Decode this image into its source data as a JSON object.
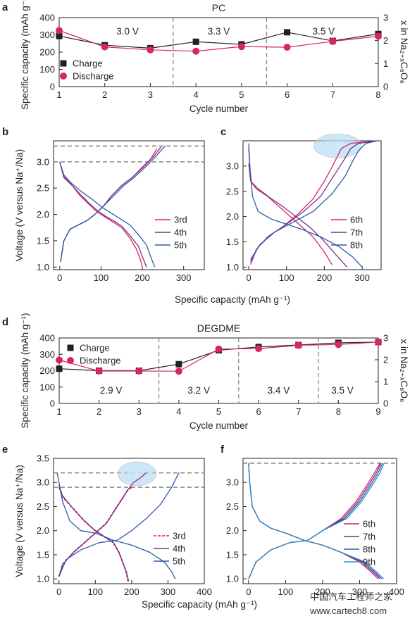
{
  "colors": {
    "charge": "#231f20",
    "discharge": "#d6246e",
    "line_3rd": "#d6246e",
    "line_4th": "#7b2f86",
    "line_5th": "#2b5ba8",
    "line_6th": "#d6246e",
    "line_7th": "#7b2f86",
    "line_8th": "#2b5ba8",
    "line_9th": "#2f8fc9",
    "dashed_ref": "#888888",
    "highlight": "#a9d3f0"
  },
  "watermark": {
    "line1": "中国汽车工程师之家",
    "line2": "www.cartech8.com"
  },
  "chart_data": [
    {
      "panel": "a",
      "type": "line",
      "title": "PC",
      "xlabel": "Cycle number",
      "ylabel": "Specific capacity (mAh g⁻¹)",
      "y2label": "x in Na₂₊ₓC₆O₆",
      "xlim": [
        1,
        8
      ],
      "ylim": [
        0,
        400
      ],
      "y2lim": [
        0,
        3
      ],
      "xticks": [
        "1",
        "2",
        "3",
        "4",
        "5",
        "6",
        "7",
        "8"
      ],
      "yticks": [
        "0",
        "100",
        "200",
        "300",
        "400"
      ],
      "y2ticks": [
        "0",
        "1",
        "2",
        "3"
      ],
      "region_labels": [
        "3.0 V",
        "3.3 V",
        "3.5 V"
      ],
      "region_label_x": [
        2.5,
        4.5,
        6.8
      ],
      "dividers": [
        3.5,
        5.55
      ],
      "legend": [
        "Charge",
        "Discharge"
      ],
      "series": [
        {
          "name": "Charge",
          "marker": "square",
          "x": [
            1,
            2,
            3,
            4,
            5,
            6,
            7,
            8
          ],
          "values": [
            293,
            240,
            223,
            260,
            245,
            315,
            265,
            305
          ]
        },
        {
          "name": "Discharge",
          "marker": "circle",
          "x": [
            1,
            2,
            3,
            4,
            5,
            6,
            7,
            8
          ],
          "values": [
            325,
            230,
            213,
            205,
            232,
            228,
            262,
            292
          ]
        }
      ]
    },
    {
      "panel": "b",
      "type": "line",
      "xlabel": "",
      "ylabel": "Voltage (V versus Na⁺/Na)",
      "xlim": [
        -15,
        350
      ],
      "ylim": [
        0.95,
        3.4
      ],
      "xticks": [
        "0",
        "100",
        "200",
        "300"
      ],
      "yticks": [
        "1.0",
        "1.5",
        "2.0",
        "2.5",
        "3.0"
      ],
      "ref_lines": [
        3.0,
        3.3
      ],
      "legend": [
        "3rd",
        "4th",
        "5th"
      ],
      "series": [
        {
          "name": "3rd discharge",
          "x": [
            0,
            10,
            30,
            50,
            70,
            90,
            110,
            130,
            150,
            170,
            185,
            195,
            200
          ],
          "values": [
            3.0,
            2.7,
            2.55,
            2.35,
            2.2,
            2.05,
            1.95,
            1.85,
            1.75,
            1.55,
            1.35,
            1.15,
            1.0
          ]
        },
        {
          "name": "3rd charge",
          "x": [
            2,
            10,
            25,
            45,
            65,
            85,
            105,
            125,
            150,
            175,
            200,
            220,
            235
          ],
          "values": [
            1.1,
            1.5,
            1.72,
            1.8,
            1.88,
            2.0,
            2.15,
            2.35,
            2.55,
            2.7,
            2.9,
            3.05,
            3.25
          ]
        },
        {
          "name": "4th discharge",
          "x": [
            0,
            10,
            30,
            50,
            70,
            90,
            110,
            130,
            150,
            170,
            190,
            200,
            210
          ],
          "values": [
            3.0,
            2.72,
            2.55,
            2.38,
            2.22,
            2.08,
            1.97,
            1.88,
            1.78,
            1.6,
            1.4,
            1.2,
            1.0
          ]
        },
        {
          "name": "4th charge",
          "x": [
            2,
            10,
            25,
            45,
            65,
            85,
            105,
            125,
            150,
            175,
            205,
            225,
            245
          ],
          "values": [
            1.1,
            1.5,
            1.72,
            1.8,
            1.88,
            2.0,
            2.15,
            2.35,
            2.55,
            2.7,
            2.92,
            3.08,
            3.28
          ]
        },
        {
          "name": "5th discharge",
          "x": [
            0,
            10,
            30,
            55,
            80,
            105,
            130,
            150,
            170,
            190,
            210,
            220,
            230
          ],
          "values": [
            3.0,
            2.75,
            2.58,
            2.42,
            2.28,
            2.12,
            2.0,
            1.9,
            1.8,
            1.62,
            1.42,
            1.2,
            1.0
          ]
        },
        {
          "name": "5th charge",
          "x": [
            2,
            10,
            25,
            45,
            65,
            85,
            105,
            130,
            155,
            180,
            210,
            230,
            255
          ],
          "values": [
            1.1,
            1.5,
            1.72,
            1.8,
            1.88,
            2.0,
            2.15,
            2.35,
            2.55,
            2.7,
            2.92,
            3.08,
            3.3
          ]
        }
      ]
    },
    {
      "panel": "c",
      "type": "line",
      "xlabel": "",
      "ylabel": "",
      "xlim": [
        -15,
        350
      ],
      "ylim": [
        0.95,
        3.5
      ],
      "xticks": [
        "0",
        "100",
        "200",
        "300"
      ],
      "yticks": [
        "1.0",
        "1.5",
        "2.0",
        "2.5",
        "3.0"
      ],
      "legend": [
        "6th",
        "7th",
        "8th"
      ],
      "series": [
        {
          "name": "6th discharge",
          "x": [
            0,
            5,
            20,
            50,
            80,
            110,
            140,
            170,
            200,
            220
          ],
          "values": [
            3.05,
            2.7,
            2.55,
            2.4,
            2.2,
            2.0,
            1.8,
            1.6,
            1.3,
            1.05
          ]
        },
        {
          "name": "6th charge",
          "x": [
            5,
            20,
            50,
            90,
            130,
            170,
            200,
            225,
            245,
            270,
            340
          ],
          "values": [
            1.05,
            1.35,
            1.6,
            1.8,
            2.05,
            2.35,
            2.7,
            3.05,
            3.35,
            3.45,
            3.5
          ]
        },
        {
          "name": "7th discharge",
          "x": [
            0,
            5,
            25,
            55,
            90,
            125,
            160,
            195,
            230,
            260
          ],
          "values": [
            3.35,
            2.7,
            2.55,
            2.38,
            2.2,
            2.0,
            1.8,
            1.55,
            1.25,
            1.0
          ]
        },
        {
          "name": "7th charge",
          "x": [
            5,
            25,
            60,
            100,
            145,
            190,
            220,
            250,
            270,
            290,
            340
          ],
          "values": [
            1.1,
            1.4,
            1.65,
            1.85,
            2.1,
            2.4,
            2.75,
            3.1,
            3.35,
            3.45,
            3.5
          ]
        },
        {
          "name": "8th discharge",
          "x": [
            0,
            3,
            10,
            25,
            60,
            100,
            140,
            190,
            240,
            275,
            300
          ],
          "values": [
            3.45,
            3.0,
            2.4,
            2.1,
            1.95,
            1.85,
            1.75,
            1.6,
            1.4,
            1.2,
            1.0
          ]
        },
        {
          "name": "8th charge",
          "x": [
            5,
            30,
            70,
            120,
            170,
            220,
            255,
            275,
            290,
            310,
            340
          ],
          "values": [
            1.15,
            1.45,
            1.7,
            1.9,
            2.1,
            2.45,
            2.8,
            3.1,
            3.3,
            3.45,
            3.5
          ]
        }
      ]
    },
    {
      "panel": "d",
      "type": "line",
      "title": "DEGDME",
      "xlabel": "Cycle number",
      "ylabel": "Specific capacity (mAh g⁻¹)",
      "y2label": "x in Na₂₊ₓC₆O₆",
      "xlim": [
        1,
        9
      ],
      "ylim": [
        0,
        400
      ],
      "y2lim": [
        0,
        3
      ],
      "xticks": [
        "1",
        "2",
        "3",
        "4",
        "5",
        "6",
        "7",
        "8",
        "9"
      ],
      "yticks": [
        "0",
        "100",
        "200",
        "300",
        "400"
      ],
      "y2ticks": [
        "0",
        "1",
        "2",
        "3"
      ],
      "region_labels": [
        "2.9 V",
        "3.2 V",
        "3.4 V",
        "3.5 V"
      ],
      "region_label_x": [
        2.3,
        4.5,
        6.5,
        8.1
      ],
      "dividers": [
        3.5,
        5.5,
        7.5
      ],
      "legend": [
        "Charge",
        "Discharge"
      ],
      "series": [
        {
          "name": "Charge",
          "marker": "square",
          "x": [
            1,
            2,
            3,
            4,
            5,
            6,
            7,
            8,
            9
          ],
          "values": [
            212,
            200,
            200,
            240,
            325,
            345,
            357,
            370,
            375
          ]
        },
        {
          "name": "Discharge",
          "marker": "circle",
          "x": [
            1,
            2,
            3,
            4,
            5,
            6,
            7,
            8,
            9
          ],
          "values": [
            265,
            198,
            198,
            197,
            332,
            335,
            355,
            360,
            375
          ]
        }
      ]
    },
    {
      "panel": "e",
      "type": "line",
      "xlabel": "Specific capacity (mAh g⁻¹)",
      "ylabel": "Voltage (V versus Na⁺/Na)",
      "xlim": [
        -15,
        400
      ],
      "ylim": [
        0.9,
        3.5
      ],
      "xticks": [
        "0",
        "100",
        "200",
        "300",
        "400"
      ],
      "yticks": [
        "1.0",
        "1.5",
        "2.0",
        "2.5",
        "3.0",
        "3.5"
      ],
      "ref_lines": [
        2.9,
        3.2
      ],
      "legend": [
        "3rd",
        "4th",
        "5th"
      ],
      "series": [
        {
          "name": "3rd discharge",
          "x": [
            0,
            10,
            40,
            70,
            100,
            130,
            150,
            165,
            175,
            185,
            190
          ],
          "values": [
            2.9,
            2.7,
            2.45,
            2.2,
            2.0,
            1.85,
            1.75,
            1.55,
            1.35,
            1.15,
            0.95
          ]
        },
        {
          "name": "3rd charge",
          "x": [
            0,
            10,
            40,
            70,
            100,
            130,
            160,
            190,
            200
          ],
          "values": [
            1.05,
            1.3,
            1.55,
            1.75,
            1.95,
            2.15,
            2.5,
            2.85,
            2.9
          ]
        },
        {
          "name": "4th discharge",
          "x": [
            0,
            10,
            40,
            70,
            100,
            130,
            150,
            165,
            175,
            185,
            192
          ],
          "values": [
            2.95,
            2.72,
            2.45,
            2.2,
            2.0,
            1.85,
            1.75,
            1.55,
            1.35,
            1.15,
            0.95
          ]
        },
        {
          "name": "4th charge",
          "x": [
            0,
            10,
            40,
            70,
            100,
            130,
            160,
            190,
            205,
            225,
            240
          ],
          "values": [
            1.05,
            1.3,
            1.55,
            1.75,
            1.95,
            2.15,
            2.5,
            2.85,
            3.0,
            3.1,
            3.2
          ]
        },
        {
          "name": "5th discharge",
          "x": [
            -5,
            0,
            10,
            30,
            60,
            100,
            150,
            200,
            250,
            290,
            310,
            320
          ],
          "values": [
            3.2,
            3.0,
            2.6,
            2.2,
            2.0,
            1.95,
            1.8,
            1.7,
            1.55,
            1.35,
            1.15,
            1.0
          ]
        },
        {
          "name": "5th charge",
          "x": [
            0,
            20,
            60,
            110,
            160,
            200,
            240,
            280,
            310,
            330
          ],
          "values": [
            1.05,
            1.4,
            1.6,
            1.75,
            1.8,
            2.0,
            2.25,
            2.55,
            2.9,
            3.2
          ]
        }
      ]
    },
    {
      "panel": "f",
      "type": "line",
      "xlabel": "",
      "ylabel": "",
      "xlim": [
        -15,
        400
      ],
      "ylim": [
        0.9,
        3.5
      ],
      "xticks": [
        "0",
        "100",
        "200",
        "300",
        "400"
      ],
      "yticks": [
        "1.0",
        "1.5",
        "2.0",
        "2.5",
        "3.0"
      ],
      "ref_lines": [
        3.4
      ],
      "legend": [
        "6th",
        "7th",
        "8th",
        "9th"
      ],
      "series": [
        {
          "name": "6th discharge",
          "x": [
            0,
            3,
            10,
            30,
            60,
            100,
            150,
            200,
            250,
            300,
            330,
            350
          ],
          "values": [
            3.4,
            3.0,
            2.5,
            2.2,
            2.05,
            1.95,
            1.8,
            1.7,
            1.55,
            1.35,
            1.15,
            1.0
          ]
        },
        {
          "name": "6th charge",
          "x": [
            0,
            20,
            60,
            110,
            160,
            200,
            250,
            290,
            320,
            340,
            355
          ],
          "values": [
            1.0,
            1.35,
            1.6,
            1.75,
            1.8,
            2.0,
            2.25,
            2.6,
            2.95,
            3.2,
            3.4
          ]
        },
        {
          "name": "7th discharge",
          "x": [
            0,
            3,
            10,
            30,
            60,
            100,
            150,
            200,
            250,
            305,
            335,
            355
          ],
          "values": [
            3.4,
            3.0,
            2.5,
            2.2,
            2.05,
            1.95,
            1.8,
            1.7,
            1.55,
            1.35,
            1.15,
            1.0
          ]
        },
        {
          "name": "7th charge",
          "x": [
            0,
            20,
            60,
            110,
            160,
            200,
            255,
            295,
            325,
            345,
            358
          ],
          "values": [
            1.0,
            1.35,
            1.6,
            1.75,
            1.8,
            2.0,
            2.25,
            2.6,
            2.95,
            3.2,
            3.4
          ]
        },
        {
          "name": "8th discharge",
          "x": [
            0,
            3,
            10,
            30,
            60,
            100,
            150,
            200,
            250,
            310,
            340,
            360
          ],
          "values": [
            3.4,
            3.0,
            2.5,
            2.2,
            2.05,
            1.95,
            1.8,
            1.7,
            1.55,
            1.35,
            1.15,
            1.0
          ]
        },
        {
          "name": "8th charge",
          "x": [
            0,
            20,
            60,
            110,
            160,
            200,
            260,
            300,
            330,
            350,
            362
          ],
          "values": [
            1.0,
            1.35,
            1.6,
            1.75,
            1.8,
            2.0,
            2.25,
            2.6,
            2.95,
            3.2,
            3.4
          ]
        },
        {
          "name": "9th discharge",
          "x": [
            0,
            3,
            10,
            30,
            60,
            100,
            150,
            200,
            250,
            315,
            345,
            365
          ],
          "values": [
            3.4,
            3.0,
            2.5,
            2.2,
            2.05,
            1.95,
            1.8,
            1.7,
            1.55,
            1.35,
            1.15,
            1.0
          ]
        },
        {
          "name": "9th charge",
          "x": [
            0,
            20,
            60,
            110,
            160,
            200,
            265,
            305,
            335,
            355,
            366
          ],
          "values": [
            1.0,
            1.35,
            1.6,
            1.75,
            1.8,
            2.0,
            2.25,
            2.6,
            2.95,
            3.2,
            3.4
          ]
        }
      ]
    }
  ]
}
